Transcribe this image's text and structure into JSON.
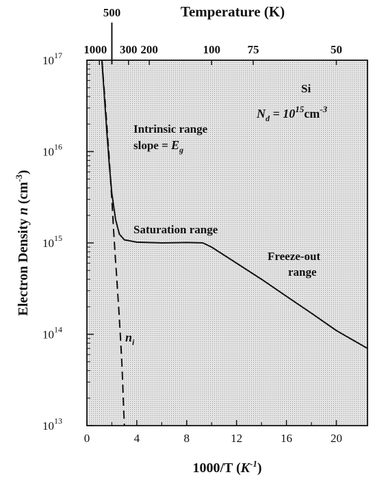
{
  "chart_data": {
    "type": "line",
    "title": "",
    "top_axis": {
      "label": "Temperature (K)",
      "ticks": [
        {
          "label": "1000",
          "temp_K": 1000
        },
        {
          "label": "500",
          "temp_K": 500
        },
        {
          "label": "300",
          "temp_K": 300
        },
        {
          "label": "200",
          "temp_K": 200
        },
        {
          "label": "100",
          "temp_K": 100
        },
        {
          "label": "75",
          "temp_K": 75
        },
        {
          "label": "50",
          "temp_K": 50
        }
      ]
    },
    "xlabel_main": "1000/T (",
    "xlabel_unit": "K",
    "xlabel_exp": "-1",
    "xlabel_end": ")",
    "x_ticks": [
      "0",
      "4",
      "8",
      "12",
      "16",
      "20"
    ],
    "x_tick_values": [
      0,
      4,
      8,
      12,
      16,
      20
    ],
    "xlim": [
      0,
      22.5
    ],
    "ylabel_main": "Electron Density ",
    "ylabel_var": "n",
    "ylabel_unit": " (cm",
    "ylabel_exp": "-3",
    "ylabel_end": ")",
    "y_scale": "log",
    "y_ticks": [
      {
        "base": "10",
        "exp": "13",
        "value": 10000000000000.0
      },
      {
        "base": "10",
        "exp": "14",
        "value": 100000000000000.0
      },
      {
        "base": "10",
        "exp": "15",
        "value": 1000000000000000.0
      },
      {
        "base": "10",
        "exp": "16",
        "value": 1e+16
      },
      {
        "base": "10",
        "exp": "17",
        "value": 1e+17
      }
    ],
    "ylim": [
      10000000000000.0,
      1e+17
    ],
    "grid": false,
    "series": [
      {
        "style": "solid",
        "points": [
          [
            1.2,
            1e+17
          ],
          [
            1.4,
            4e+16
          ],
          [
            1.6,
            1.6e+16
          ],
          [
            1.8,
            7000000000000000.0
          ],
          [
            2.0,
            3500000000000000.0
          ],
          [
            2.3,
            1800000000000000.0
          ],
          [
            2.6,
            1250000000000000.0
          ],
          [
            3.0,
            1080000000000000.0
          ],
          [
            4.0,
            1020000000000000.0
          ],
          [
            6.0,
            1000000000000000.0
          ],
          [
            8.0,
            1010000000000000.0
          ],
          [
            9.3,
            1000000000000000.0
          ],
          [
            10.0,
            900000000000000.0
          ],
          [
            12.0,
            600000000000000.0
          ],
          [
            14.0,
            400000000000000.0
          ],
          [
            16.0,
            260000000000000.0
          ],
          [
            18.0,
            170000000000000.0
          ],
          [
            20.0,
            110000000000000.0
          ],
          [
            22.5,
            70000000000000.0
          ]
        ]
      },
      {
        "name_main": "n",
        "name_sub": "i",
        "style": "dashed",
        "points": [
          [
            1.2,
            1e+17
          ],
          [
            1.5,
            3e+16
          ],
          [
            1.8,
            8000000000000000.0
          ],
          [
            2.0,
            3000000000000000.0
          ],
          [
            2.2,
            1000000000000000.0
          ],
          [
            2.4,
            400000000000000.0
          ],
          [
            2.6,
            150000000000000.0
          ],
          [
            2.8,
            50000000000000.0
          ],
          [
            3.0,
            10000000000000.0
          ]
        ]
      }
    ],
    "annotations": {
      "material": "Si",
      "doping_var": "N",
      "doping_sub": "d",
      "doping_eq": " = ",
      "doping_base": "10",
      "doping_exp": "15",
      "doping_unit": "cm",
      "doping_unit_exp": "-3",
      "intrinsic_line1": "Intrinsic range",
      "intrinsic_line2_prefix": "slope = ",
      "intrinsic_line2_var": "E",
      "intrinsic_line2_sub": "g",
      "saturation": "Saturation range",
      "freeze_line1": "Freeze-out",
      "freeze_line2": "range"
    },
    "colors": {
      "plot_background": "#d9d9d9",
      "line": "#111111"
    }
  }
}
